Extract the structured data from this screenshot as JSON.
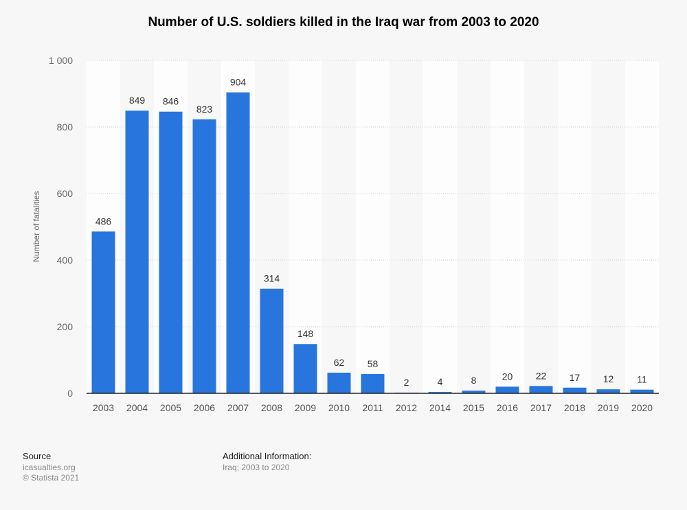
{
  "chart_data": {
    "type": "bar",
    "title": "Number of U.S. soldiers killed in the Iraq war from 2003 to 2020",
    "xlabel": "",
    "ylabel": "Number of fatalities",
    "categories": [
      "2003",
      "2004",
      "2005",
      "2006",
      "2007",
      "2008",
      "2009",
      "2010",
      "2011",
      "2012",
      "2014",
      "2015",
      "2016",
      "2017",
      "2018",
      "2019",
      "2020"
    ],
    "values": [
      486,
      849,
      846,
      823,
      904,
      314,
      148,
      62,
      58,
      2,
      4,
      8,
      20,
      22,
      17,
      12,
      11
    ],
    "ylim": [
      0,
      1000
    ],
    "yticks": [
      0,
      200,
      400,
      600,
      800,
      1000
    ],
    "ytick_labels": [
      "0",
      "200",
      "400",
      "600",
      "800",
      "1 000"
    ],
    "grid": true,
    "bar_color": "#2876dd"
  },
  "footer": {
    "source_heading": "Source",
    "source": "icasualties.org",
    "copyright": "© Statista 2021",
    "info_heading": "Additional Information:",
    "info": "Iraq; 2003 to 2020"
  }
}
